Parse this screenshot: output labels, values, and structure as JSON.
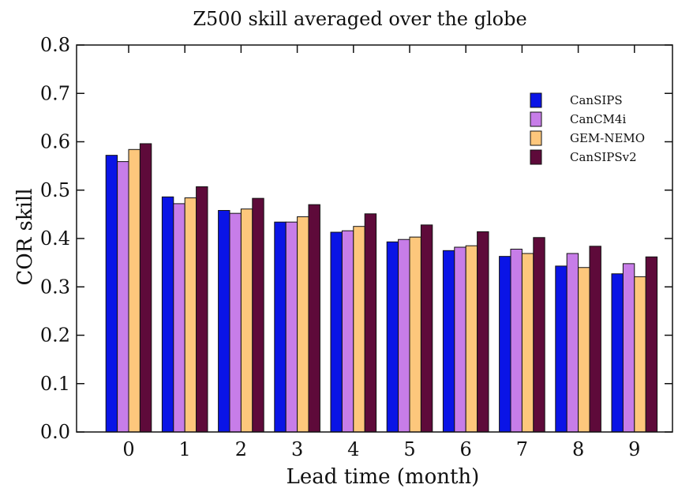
{
  "chart_data": {
    "type": "bar",
    "title": "Z500 skill averaged over the globe",
    "xlabel": "Lead time (month)",
    "ylabel": "COR skill",
    "categories": [
      "0",
      "1",
      "2",
      "3",
      "4",
      "5",
      "6",
      "7",
      "8",
      "9"
    ],
    "ylim": [
      0,
      0.8
    ],
    "yticks": [
      "0.0",
      "0.1",
      "0.2",
      "0.3",
      "0.4",
      "0.5",
      "0.6",
      "0.7",
      "0.8"
    ],
    "legend_position": "top-right",
    "grid": false,
    "series": [
      {
        "name": "CanSIPS",
        "color": "#0a14e6",
        "values": [
          0.572,
          0.486,
          0.458,
          0.434,
          0.413,
          0.393,
          0.375,
          0.363,
          0.343,
          0.327
        ]
      },
      {
        "name": "CanCM4i",
        "color": "#c77de8",
        "values": [
          0.559,
          0.472,
          0.452,
          0.434,
          0.416,
          0.398,
          0.382,
          0.378,
          0.369,
          0.348
        ]
      },
      {
        "name": "GEM-NEMO",
        "color": "#fdc77c",
        "values": [
          0.584,
          0.484,
          0.461,
          0.445,
          0.425,
          0.403,
          0.385,
          0.369,
          0.34,
          0.321
        ]
      },
      {
        "name": "CanSIPSv2",
        "color": "#5e0a3a",
        "values": [
          0.596,
          0.507,
          0.483,
          0.47,
          0.451,
          0.428,
          0.414,
          0.402,
          0.384,
          0.362
        ]
      }
    ]
  }
}
